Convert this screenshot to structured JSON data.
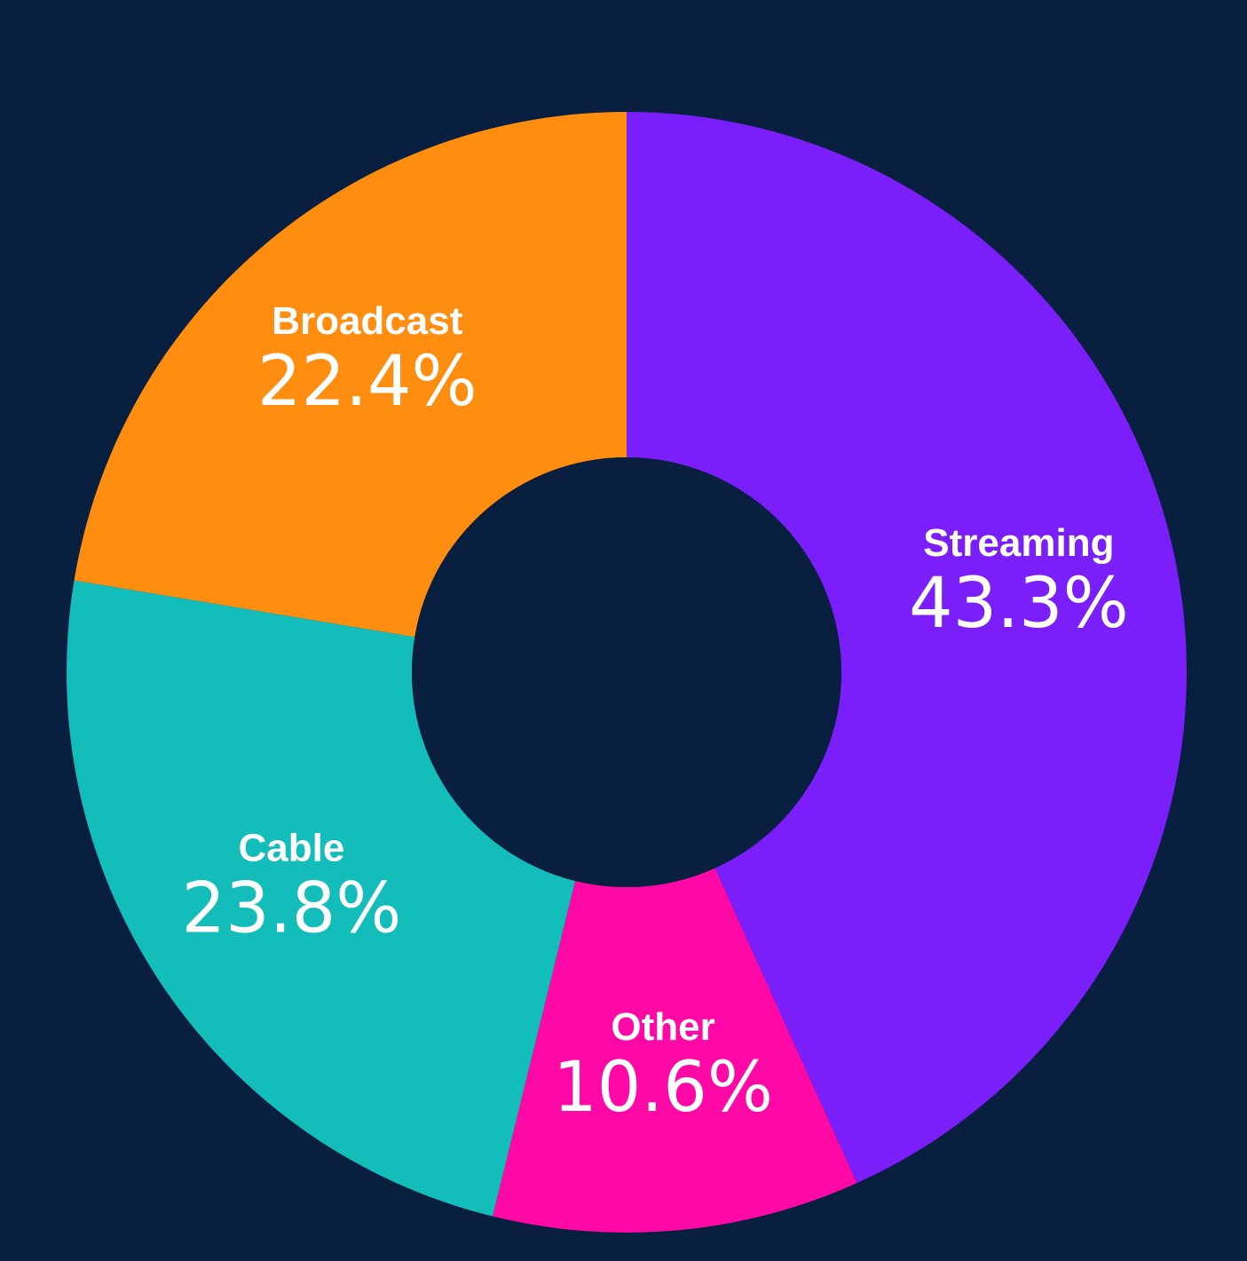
{
  "chart_data": {
    "type": "pie",
    "style": "donut",
    "slices": [
      {
        "label": "Streaming",
        "value": 43.3,
        "value_text": "43.3%",
        "color": "#7a1ffa"
      },
      {
        "label": "Other",
        "value": 10.6,
        "value_text": "10.6%",
        "color": "#ff09a6"
      },
      {
        "label": "Cable",
        "value": 23.8,
        "value_text": "23.8%",
        "color": "#13bdb9"
      },
      {
        "label": "Broadcast",
        "value": 22.4,
        "value_text": "22.4%",
        "color": "#ff8d10"
      }
    ],
    "start_angle": "12 o'clock",
    "direction": "clockwise",
    "background_color": "#081f40",
    "hole_color": "#081f40"
  }
}
